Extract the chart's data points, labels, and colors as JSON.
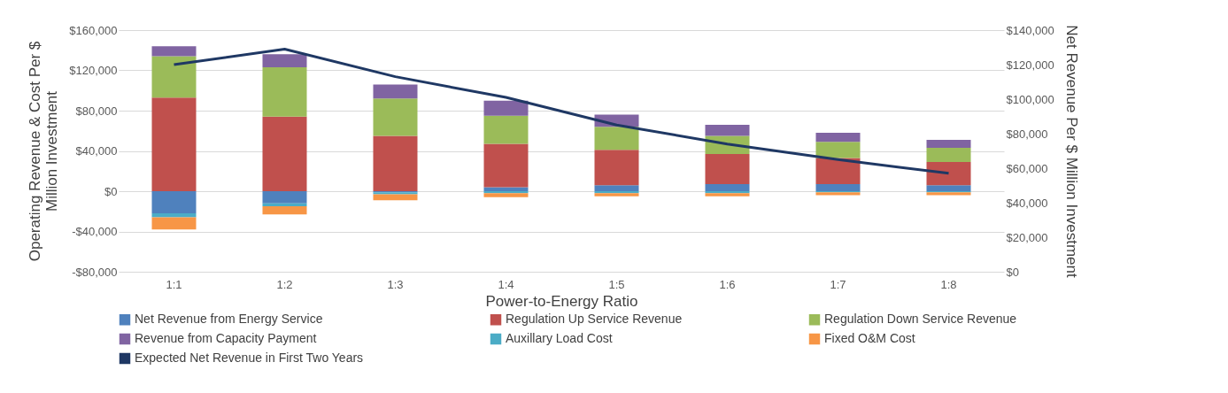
{
  "chart_data": {
    "type": "bar",
    "stacked": true,
    "xlabel": "Power-to-Energy Ratio",
    "ylabel": "Operating Revenue & Cost Per $ Million Investment",
    "y2label": "Net Revenue Per $ Million Investment",
    "categories": [
      "1:1",
      "1:2",
      "1:3",
      "1:4",
      "1:5",
      "1:6",
      "1:7",
      "1:8"
    ],
    "series": [
      {
        "name": "Net Revenue from Energy Service",
        "color": "#4f81bd",
        "values": [
          -22000,
          -12000,
          -1000,
          4000,
          6000,
          7000,
          7000,
          6000
        ]
      },
      {
        "name": "Regulation Up Service Revenue",
        "color": "#c0504d",
        "values": [
          93000,
          74000,
          55000,
          43000,
          35000,
          30000,
          26000,
          23000
        ]
      },
      {
        "name": "Regulation Down Service Revenue",
        "color": "#9bbb59",
        "values": [
          41000,
          49000,
          37000,
          28000,
          23000,
          18000,
          16000,
          14000
        ]
      },
      {
        "name": "Revenue from Capacity Payment",
        "color": "#8064a2",
        "values": [
          10000,
          13000,
          14000,
          15000,
          12000,
          11000,
          9000,
          8000
        ]
      },
      {
        "name": "Auxillary Load Cost",
        "color": "#4bacc6",
        "values": [
          -4000,
          -3000,
          -2000,
          -2000,
          -2000,
          -2000,
          -1000,
          -1000
        ]
      },
      {
        "name": "Fixed O&M Cost",
        "color": "#f79646",
        "values": [
          -12000,
          -8000,
          -6000,
          -4000,
          -3000,
          -3000,
          -3000,
          -3000
        ]
      },
      {
        "name": "Expected Net Revenue in First Two Years",
        "type": "line",
        "axis": "y2",
        "color": "#1f3864",
        "values": [
          120000,
          129000,
          113000,
          101000,
          85000,
          74000,
          65000,
          57000
        ]
      }
    ],
    "ylim": [
      -80000,
      160000
    ],
    "yticks": [
      {
        "value": -80000,
        "label": "-$80,000"
      },
      {
        "value": -40000,
        "label": "-$40,000"
      },
      {
        "value": 0,
        "label": "$0"
      },
      {
        "value": 40000,
        "label": "$40,000"
      },
      {
        "value": 80000,
        "label": "$80,000"
      },
      {
        "value": 120000,
        "label": "$120,000"
      },
      {
        "value": 160000,
        "label": "$160,000"
      }
    ],
    "y2lim": [
      0,
      140000
    ],
    "y2ticks": [
      {
        "value": 0,
        "label": "$0"
      },
      {
        "value": 20000,
        "label": "$20,000"
      },
      {
        "value": 40000,
        "label": "$40,000"
      },
      {
        "value": 60000,
        "label": "$60,000"
      },
      {
        "value": 80000,
        "label": "$80,000"
      },
      {
        "value": 100000,
        "label": "$100,000"
      },
      {
        "value": 120000,
        "label": "$120,000"
      },
      {
        "value": 140000,
        "label": "$140,000"
      }
    ],
    "grid": "y",
    "legend": "bottom",
    "marker": "none",
    "line_style": "solid"
  }
}
